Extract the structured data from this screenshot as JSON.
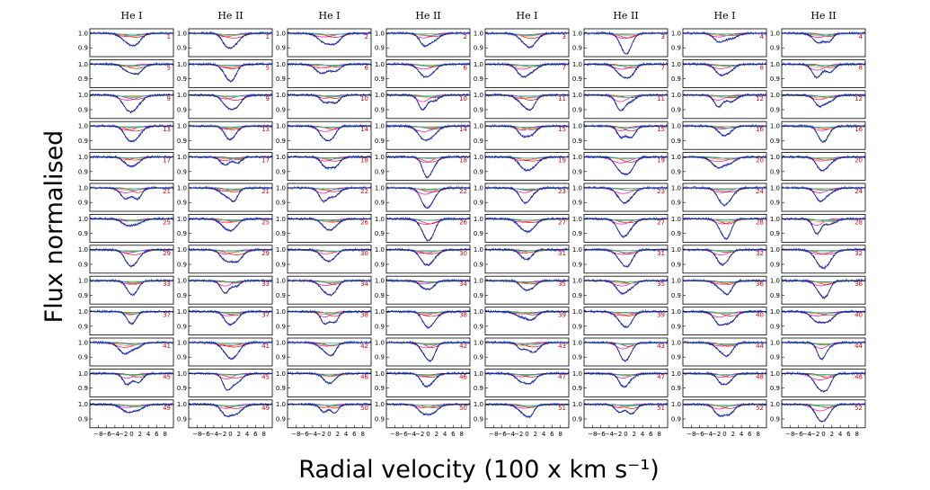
{
  "chart_data": {
    "type": "line",
    "layout": "small-multiples",
    "xlabel": "Radial velocity (100 x km s⁻¹)",
    "ylabel": "Flux normalised",
    "column_titles": [
      "He I",
      "He II",
      "He I",
      "He II",
      "He I",
      "He II",
      "He I",
      "He II"
    ],
    "rows": 13,
    "columns": 8,
    "panel_labels": [
      [
        1,
        1,
        2,
        2,
        3,
        3,
        4,
        4
      ],
      [
        5,
        5,
        6,
        6,
        7,
        7,
        8,
        8
      ],
      [
        9,
        9,
        10,
        10,
        11,
        11,
        12,
        12
      ],
      [
        13,
        13,
        14,
        14,
        15,
        15,
        16,
        16
      ],
      [
        17,
        17,
        18,
        18,
        19,
        19,
        20,
        20
      ],
      [
        21,
        21,
        22,
        22,
        23,
        23,
        24,
        24
      ],
      [
        25,
        25,
        26,
        26,
        27,
        27,
        28,
        28
      ],
      [
        29,
        29,
        30,
        30,
        31,
        31,
        32,
        32
      ],
      [
        33,
        33,
        34,
        34,
        35,
        35,
        36,
        36
      ],
      [
        37,
        37,
        38,
        38,
        39,
        39,
        40,
        40
      ],
      [
        41,
        41,
        42,
        42,
        43,
        43,
        44,
        44
      ],
      [
        45,
        45,
        46,
        46,
        47,
        47,
        48,
        48
      ],
      [
        49,
        49,
        50,
        50,
        51,
        51,
        52,
        52
      ]
    ],
    "xlim": [
      -10,
      10
    ],
    "ylim": [
      0.84,
      1.03
    ],
    "y_ticks": [
      "1.0",
      "0.9"
    ],
    "x_ticks": [
      "−8",
      "−6",
      "−4",
      "−2",
      "0",
      "2",
      "4",
      "6",
      "8"
    ],
    "x_tick_values": [
      -8,
      -6,
      -4,
      -2,
      0,
      2,
      4,
      6,
      8
    ],
    "line_colors": {
      "observed": "#1f2fe0",
      "fit": "#000000",
      "component_1": "#ff00aa",
      "component_2": "#e01010",
      "component_3": "#3a8a3a",
      "component_4": "#ff8c1a",
      "component_5": "#20c0d0"
    }
  }
}
